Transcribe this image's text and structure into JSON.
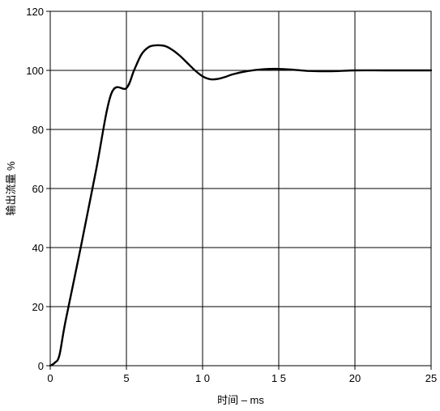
{
  "chart_data": {
    "type": "line",
    "title": "",
    "xlabel": "时间 – ms",
    "ylabel": "输出流量 %",
    "xlim": [
      0,
      25
    ],
    "ylim": [
      0,
      120
    ],
    "grid": true,
    "x_ticks": [
      0,
      5,
      10,
      15,
      20,
      25
    ],
    "x_tick_labels": [
      "0",
      "5",
      "1 0",
      "1 5",
      "20",
      "25"
    ],
    "y_ticks": [
      0,
      20,
      40,
      60,
      80,
      100,
      120
    ],
    "y_tick_labels": [
      "0",
      "20",
      "40",
      "60",
      "80",
      "100",
      "120"
    ],
    "series": [
      {
        "color": "#000000",
        "x": [
          0,
          0.3,
          0.6,
          1.0,
          2.0,
          3.0,
          4.0,
          5.0,
          5.5,
          6.0,
          6.5,
          7.0,
          7.5,
          8.0,
          8.5,
          9.0,
          9.5,
          10.0,
          10.5,
          11.0,
          11.5,
          12.0,
          13.0,
          14.0,
          15.0,
          16.0,
          17.0,
          18.0,
          19.0,
          20.0,
          22.0,
          25.0
        ],
        "y": [
          0,
          1,
          3.5,
          15,
          40,
          66,
          92,
          94,
          100,
          105.5,
          108,
          108.5,
          108.3,
          107,
          105,
          102.5,
          100,
          98,
          97,
          97.1,
          97.8,
          98.7,
          99.8,
          100.4,
          100.5,
          100.2,
          99.8,
          99.7,
          99.8,
          100,
          100,
          100
        ]
      }
    ]
  }
}
